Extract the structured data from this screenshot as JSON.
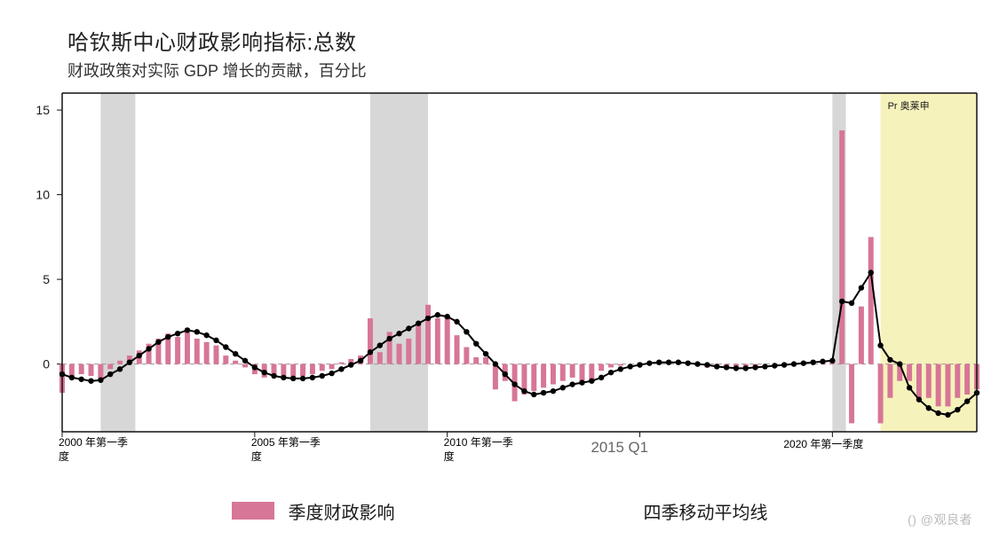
{
  "title": "哈钦斯中心财政影响指标:总数",
  "subtitle": "财政政策对实际 GDP 增长的贡献，百分比",
  "watermark": "@观良者",
  "watermark_icon": "()",
  "pr_label": "Pr  奥莱申",
  "legend": {
    "bars_label": "季度财政影响",
    "line_label": "四季移动平均线"
  },
  "chart": {
    "type": "bar+line",
    "background_color": "#ffffff",
    "border_color": "#111111",
    "border_width": 1.5,
    "zero_line": {
      "color": "#9a9a9a",
      "dash": "5,4",
      "width": 1
    },
    "grid_color": "#c0c0c0",
    "recession_bands": {
      "color": "#d7d7d7",
      "opacity": 1.0,
      "ranges_x": [
        [
          2001.0,
          2001.9
        ],
        [
          2008.0,
          2009.5
        ],
        [
          2020.0,
          2020.35
        ]
      ]
    },
    "forecast_band": {
      "color": "#f4f0b0",
      "opacity": 0.85,
      "range_x": [
        2021.25,
        2023.75
      ]
    },
    "ylim": [
      -4,
      16
    ],
    "yticks": [
      0,
      5,
      10,
      15
    ],
    "ytick_fontsize": 14,
    "ytick_color": "#1a1a1a",
    "x_start": 2000.0,
    "x_end": 2023.75,
    "xticks": [
      {
        "x": 2000.0,
        "label": "2000 年第一季\n度"
      },
      {
        "x": 2005.0,
        "label": "2005 年第一季\n度"
      },
      {
        "x": 2010.0,
        "label": "2010 年第一季\n度"
      },
      {
        "x": 2015.0,
        "label": "2015 Q1",
        "single_line": true,
        "font_scale": 1.4,
        "color": "#666666"
      },
      {
        "x": 2020.0,
        "label": "2020 年第一季度",
        "single_line": true
      }
    ],
    "xtick_fontsize": 12,
    "bars": {
      "color": "#d77696",
      "width_rel": 0.55,
      "x_start": 2000.0,
      "step": 0.25,
      "values": [
        -1.7,
        -0.8,
        -0.6,
        -0.7,
        -0.9,
        -0.3,
        0.2,
        0.5,
        0.8,
        1.2,
        1.5,
        1.8,
        1.6,
        1.9,
        1.5,
        1.3,
        1.1,
        0.5,
        0.2,
        -0.2,
        -0.6,
        -0.8,
        -0.7,
        -0.9,
        -0.8,
        -0.7,
        -0.6,
        -0.4,
        -0.3,
        0.1,
        0.3,
        0.5,
        2.7,
        0.7,
        1.9,
        1.2,
        1.5,
        2.5,
        3.5,
        2.7,
        2.8,
        1.7,
        1.0,
        0.4,
        0.4,
        -1.5,
        -1.0,
        -2.2,
        -1.8,
        -1.6,
        -1.4,
        -1.2,
        -1.0,
        -0.8,
        -1.2,
        -1.0,
        -0.4,
        -0.2,
        -0.1,
        0.0,
        0.1,
        0.1,
        0.2,
        0.0,
        0.1,
        0.0,
        -0.1,
        -0.2,
        -0.2,
        -0.3,
        -0.3,
        -0.2,
        -0.1,
        0.0,
        0.0,
        0.0,
        0.0,
        0.1,
        0.2,
        0.2,
        0.2,
        13.8,
        -3.5,
        3.4,
        7.5,
        -3.5,
        -2.0,
        -1.0,
        -1.0,
        -2.0,
        -2.0,
        -2.5,
        -2.5,
        -2.0,
        -1.8,
        -1.5
      ]
    },
    "line": {
      "color": "#000000",
      "width": 2,
      "marker": {
        "shape": "circle",
        "size": 3.2,
        "fill": "#000000"
      },
      "x_start": 2000.0,
      "step": 0.25,
      "values": [
        -0.6,
        -0.8,
        -0.9,
        -1.0,
        -0.95,
        -0.6,
        -0.3,
        0.1,
        0.5,
        0.9,
        1.3,
        1.6,
        1.8,
        2.0,
        1.9,
        1.7,
        1.4,
        1.0,
        0.6,
        0.2,
        -0.2,
        -0.5,
        -0.7,
        -0.8,
        -0.85,
        -0.85,
        -0.8,
        -0.7,
        -0.55,
        -0.3,
        -0.05,
        0.2,
        0.7,
        1.1,
        1.5,
        1.8,
        2.1,
        2.4,
        2.7,
        2.9,
        2.8,
        2.5,
        1.9,
        1.2,
        0.6,
        0.0,
        -0.6,
        -1.2,
        -1.6,
        -1.8,
        -1.7,
        -1.6,
        -1.4,
        -1.2,
        -1.1,
        -1.0,
        -0.8,
        -0.5,
        -0.3,
        -0.15,
        -0.05,
        0.05,
        0.1,
        0.1,
        0.1,
        0.05,
        0.0,
        -0.05,
        -0.15,
        -0.2,
        -0.25,
        -0.25,
        -0.2,
        -0.15,
        -0.1,
        -0.05,
        0.0,
        0.05,
        0.1,
        0.15,
        0.2,
        3.7,
        3.6,
        4.5,
        5.4,
        1.1,
        0.25,
        0.0,
        -1.4,
        -2.1,
        -2.6,
        -2.9,
        -3.0,
        -2.7,
        -2.2,
        -1.7
      ]
    }
  }
}
